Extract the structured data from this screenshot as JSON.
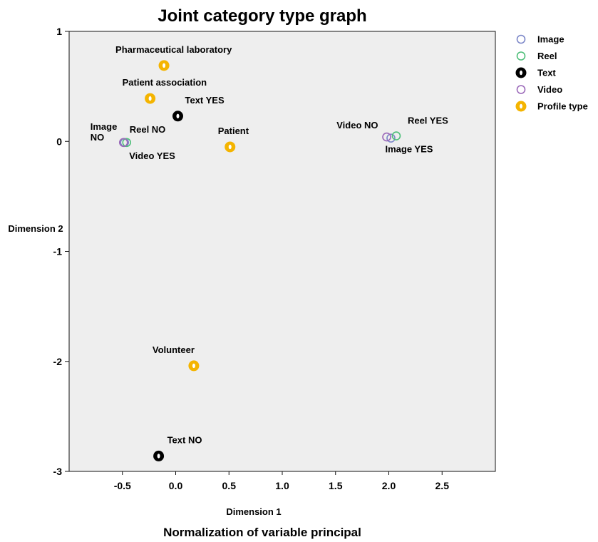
{
  "chart_data": {
    "type": "scatter",
    "title": "Joint category type graph",
    "xlabel": "Dimension 1",
    "ylabel": "Dimension 2",
    "subtitle": "Normalization of variable principal",
    "xlim": [
      -1.0,
      3.0
    ],
    "ylim": [
      -3.0,
      1.0
    ],
    "xticks": [
      "-0.5",
      "0.0",
      "0.5",
      "1.0",
      "1.5",
      "2.0",
      "2.5"
    ],
    "xtick_values": [
      -0.5,
      0.0,
      0.5,
      1.0,
      1.5,
      2.0,
      2.5
    ],
    "yticks": [
      "1",
      "0",
      "-1",
      "-2",
      "-3"
    ],
    "ytick_values": [
      1,
      0,
      -1,
      -2,
      -3
    ],
    "grid": false,
    "legend_position": "right",
    "series": [
      {
        "name": "Image",
        "marker": "hollow-circle",
        "color": "#7b86c8",
        "points": [
          {
            "label": "Image NO",
            "x": -0.48,
            "y": -0.01
          },
          {
            "label": "Image YES",
            "x": 2.02,
            "y": 0.03
          }
        ]
      },
      {
        "name": "Reel",
        "marker": "hollow-circle",
        "color": "#4fbf7a",
        "points": [
          {
            "label": "Reel NO",
            "x": -0.46,
            "y": -0.01
          },
          {
            "label": "Reel YES",
            "x": 2.07,
            "y": 0.05
          }
        ]
      },
      {
        "name": "Text",
        "marker": "filled-ring",
        "color": "#000000",
        "points": [
          {
            "label": "Text YES",
            "x": 0.02,
            "y": 0.23
          },
          {
            "label": "Text NO",
            "x": -0.16,
            "y": -2.86
          }
        ]
      },
      {
        "name": "Video",
        "marker": "hollow-circle",
        "color": "#9a67b8",
        "points": [
          {
            "label": "Video YES",
            "x": -0.49,
            "y": -0.01
          },
          {
            "label": "Video NO",
            "x": 1.98,
            "y": 0.04
          }
        ]
      },
      {
        "name": "Profile type",
        "marker": "filled-ring",
        "color": "#f4b400",
        "points": [
          {
            "label": "Pharmaceutical laboratory",
            "x": -0.11,
            "y": 0.69
          },
          {
            "label": "Patient association",
            "x": -0.24,
            "y": 0.39
          },
          {
            "label": "Patient",
            "x": 0.51,
            "y": -0.05
          },
          {
            "label": "Volunteer",
            "x": 0.17,
            "y": -2.04
          }
        ]
      }
    ]
  }
}
